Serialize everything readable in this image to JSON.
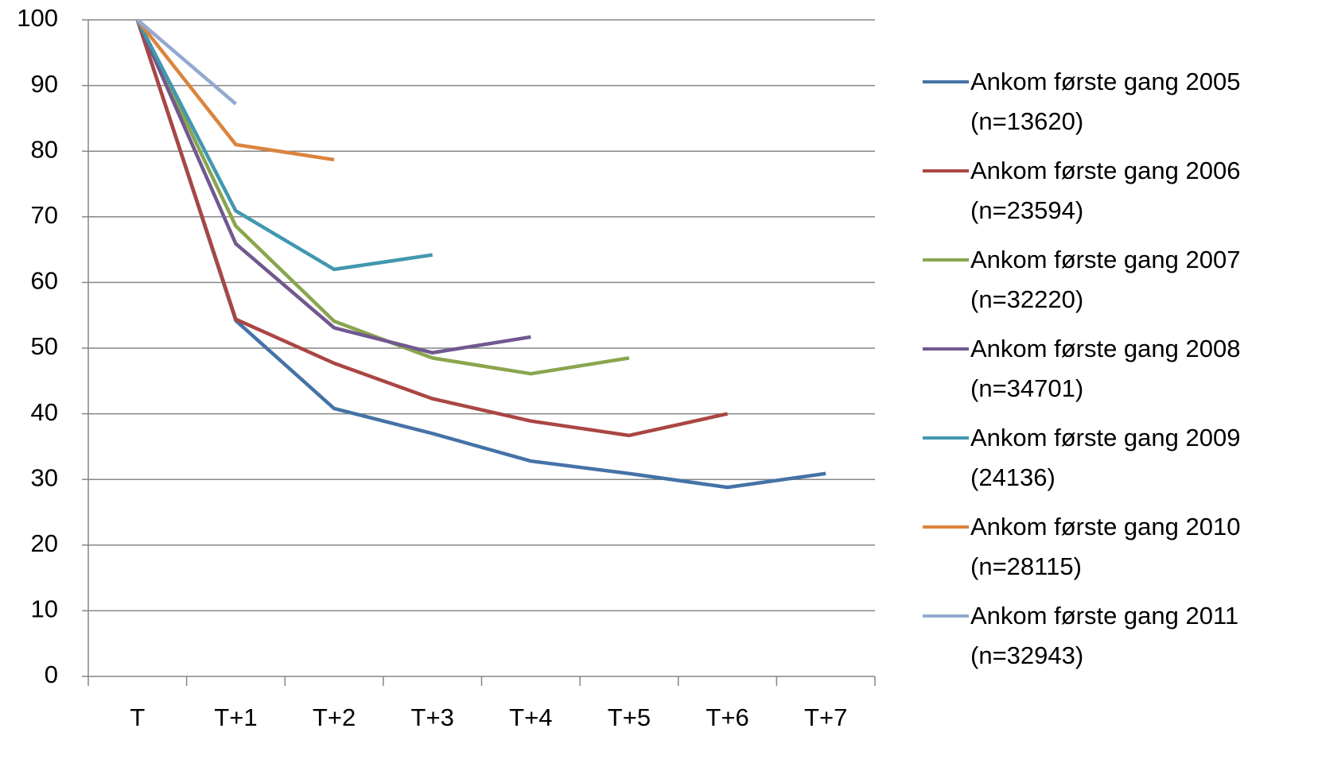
{
  "chart_data": {
    "type": "line",
    "categories": [
      "T",
      "T+1",
      "T+2",
      "T+3",
      "T+4",
      "T+5",
      "T+6",
      "T+7"
    ],
    "ylim": [
      0,
      100
    ],
    "yticks": [
      0,
      10,
      20,
      30,
      40,
      50,
      60,
      70,
      80,
      90,
      100
    ],
    "grid": true,
    "legend": "right",
    "series": [
      {
        "name": "Ankom første gang 2005 (n=13620)",
        "color": "#4572a7",
        "values": [
          100,
          54.2,
          40.8,
          37.0,
          32.8,
          30.9,
          28.8,
          30.9
        ]
      },
      {
        "name": "Ankom første gang 2006 (n=23594)",
        "color": "#aa4643",
        "values": [
          100,
          54.4,
          47.7,
          42.3,
          38.9,
          36.7,
          40.0,
          null
        ]
      },
      {
        "name": "Ankom første gang 2007 (n=32220)",
        "color": "#89a54e",
        "values": [
          100,
          68.6,
          54.1,
          48.5,
          46.1,
          48.5,
          null,
          null
        ]
      },
      {
        "name": "Ankom første gang 2008 (n=34701)",
        "color": "#71588f",
        "values": [
          100,
          65.9,
          53.1,
          49.3,
          51.7,
          null,
          null,
          null
        ]
      },
      {
        "name": "Ankom første gang 2009 (24136)",
        "color": "#4198af",
        "values": [
          100,
          70.9,
          62.0,
          64.2,
          null,
          null,
          null,
          null
        ]
      },
      {
        "name": "Ankom første gang 2010 (n=28115)",
        "color": "#db843d",
        "values": [
          100,
          81.0,
          78.7,
          null,
          null,
          null,
          null,
          null
        ]
      },
      {
        "name": "Ankom første gang 2011 (n=32943)",
        "color": "#93a9cf",
        "values": [
          100,
          87.2,
          null,
          null,
          null,
          null,
          null,
          null
        ]
      }
    ]
  }
}
